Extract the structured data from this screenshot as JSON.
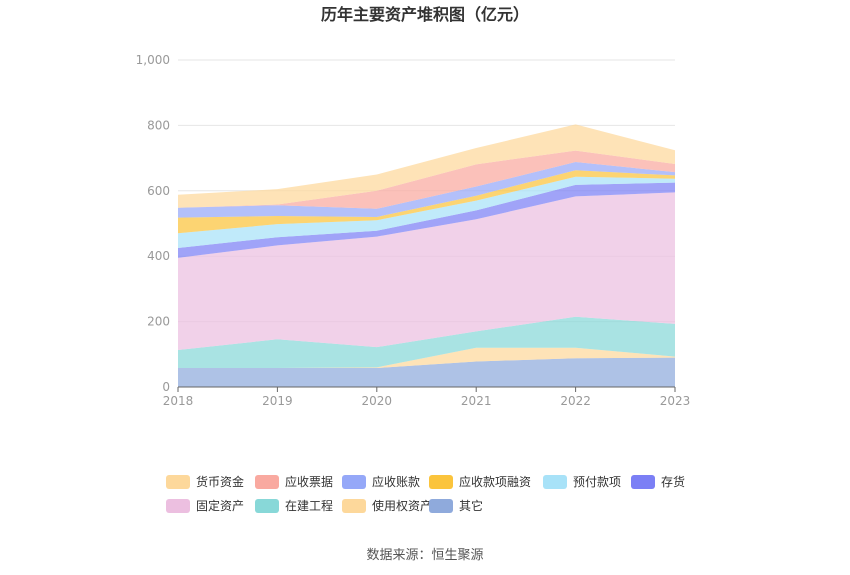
{
  "chart_data": {
    "type": "area",
    "stacked": true,
    "title": "历年主要资产堆积图（亿元）",
    "source": "数据来源：恒生聚源",
    "categories": [
      "2018",
      "2019",
      "2020",
      "2021",
      "2022",
      "2023"
    ],
    "ylim": [
      0,
      1000
    ],
    "yticks": [
      "0",
      "200",
      "400",
      "600",
      "800",
      "1,000"
    ],
    "grid": true,
    "legend_position": "bottom",
    "series": [
      {
        "name": "其它",
        "color": "#8faadc",
        "values": [
          58,
          58,
          58,
          78,
          88,
          90
        ]
      },
      {
        "name": "使用权资产",
        "color": "#fdd89b",
        "values": [
          0,
          0,
          2,
          42,
          32,
          3
        ]
      },
      {
        "name": "在建工程",
        "color": "#88d8d8",
        "values": [
          55,
          88,
          62,
          50,
          95,
          100
        ]
      },
      {
        "name": "固定资产",
        "color": "#ecbfe0",
        "values": [
          282,
          287,
          338,
          343,
          368,
          402
        ]
      },
      {
        "name": "存货",
        "color": "#7b7ff5",
        "values": [
          30,
          25,
          18,
          27,
          35,
          30
        ]
      },
      {
        "name": "预付款项",
        "color": "#a8e2f8",
        "values": [
          45,
          40,
          32,
          30,
          25,
          12
        ]
      },
      {
        "name": "应收款项融资",
        "color": "#fbc43c",
        "values": [
          48,
          25,
          10,
          15,
          20,
          10
        ]
      },
      {
        "name": "应收账款",
        "color": "#95a8f8",
        "values": [
          30,
          33,
          25,
          28,
          25,
          10
        ]
      },
      {
        "name": "应收票据",
        "color": "#f9a9a0",
        "values": [
          0,
          2,
          55,
          68,
          35,
          25
        ]
      },
      {
        "name": "货币资金",
        "color": "#fdd89b",
        "values": [
          40,
          47,
          50,
          50,
          80,
          42
        ]
      }
    ],
    "legend_order": [
      "货币资金",
      "应收票据",
      "应收账款",
      "应收款项融资",
      "预付款项",
      "存货",
      "固定资产",
      "在建工程",
      "使用权资产",
      "其它"
    ]
  }
}
